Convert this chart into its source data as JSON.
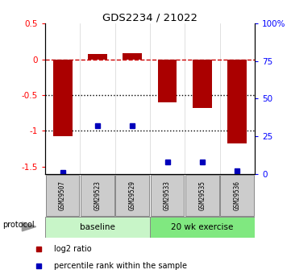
{
  "title": "GDS2234 / 21022",
  "samples": [
    "GSM29507",
    "GSM29523",
    "GSM29529",
    "GSM29533",
    "GSM29535",
    "GSM29536"
  ],
  "log2_ratio": [
    -1.08,
    0.07,
    0.09,
    -0.6,
    -0.68,
    -1.18
  ],
  "percentile_rank": [
    1,
    32,
    32,
    8,
    8,
    2
  ],
  "ylim_left": [
    -1.6,
    0.5
  ],
  "ylim_right": [
    0,
    100
  ],
  "groups": [
    {
      "label": "baseline",
      "indices": [
        0,
        1,
        2
      ],
      "color": "#c8f5c8"
    },
    {
      "label": "20 wk exercise",
      "indices": [
        3,
        4,
        5
      ],
      "color": "#80e880"
    }
  ],
  "bar_color": "#aa0000",
  "dot_color": "#0000bb",
  "dashed_line_color": "#cc0000",
  "dotted_line_color": "#000000",
  "bar_width": 0.55,
  "protocol_label": "protocol",
  "legend_items": [
    {
      "label": "log2 ratio",
      "color": "#aa0000"
    },
    {
      "label": "percentile rank within the sample",
      "color": "#0000bb"
    }
  ],
  "yticks_left": [
    -1.5,
    -1.0,
    -0.5,
    0.0,
    0.5
  ],
  "yticks_right": [
    0,
    25,
    50,
    75,
    100
  ],
  "hlines_dotted": [
    -0.5,
    -1.0
  ],
  "hline_dashed": 0.0
}
